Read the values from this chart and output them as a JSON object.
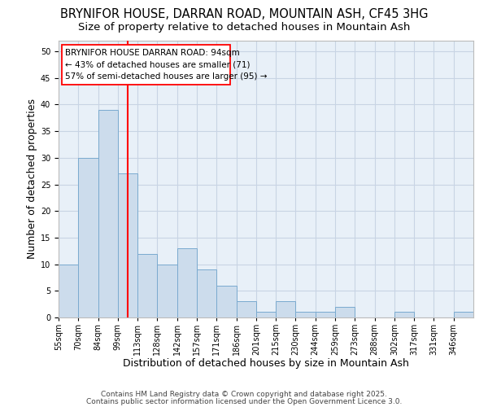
{
  "title1": "BRYNIFOR HOUSE, DARRAN ROAD, MOUNTAIN ASH, CF45 3HG",
  "title2": "Size of property relative to detached houses in Mountain Ash",
  "xlabel": "Distribution of detached houses by size in Mountain Ash",
  "ylabel": "Number of detached properties",
  "bar_values": [
    10,
    30,
    39,
    27,
    12,
    10,
    13,
    9,
    6,
    3,
    1,
    3,
    1,
    1,
    2,
    0,
    0,
    1,
    0,
    0,
    1
  ],
  "x_tick_labels": [
    "55sqm",
    "70sqm",
    "84sqm",
    "99sqm",
    "113sqm",
    "128sqm",
    "142sqm",
    "157sqm",
    "171sqm",
    "186sqm",
    "201sqm",
    "215sqm",
    "230sqm",
    "244sqm",
    "259sqm",
    "273sqm",
    "288sqm",
    "302sqm",
    "317sqm",
    "331sqm",
    "346sqm"
  ],
  "bar_color": "#ccdcec",
  "bar_edge_color": "#7aaacf",
  "red_line_x": 3.5,
  "ylim": [
    0,
    52
  ],
  "yticks": [
    0,
    5,
    10,
    15,
    20,
    25,
    30,
    35,
    40,
    45,
    50
  ],
  "annotation_title": "BRYNIFOR HOUSE DARRAN ROAD: 94sqm",
  "annotation_line1": "← 43% of detached houses are smaller (71)",
  "annotation_line2": "57% of semi-detached houses are larger (95) →",
  "footer1": "Contains HM Land Registry data © Crown copyright and database right 2025.",
  "footer2": "Contains public sector information licensed under the Open Government Licence 3.0.",
  "background_color": "#e8f0f8",
  "grid_color": "#c8d4e4",
  "title_fontsize": 10.5,
  "subtitle_fontsize": 9.5,
  "axis_label_fontsize": 9,
  "tick_fontsize": 7,
  "footer_fontsize": 6.5,
  "ann_fontsize": 7.5
}
